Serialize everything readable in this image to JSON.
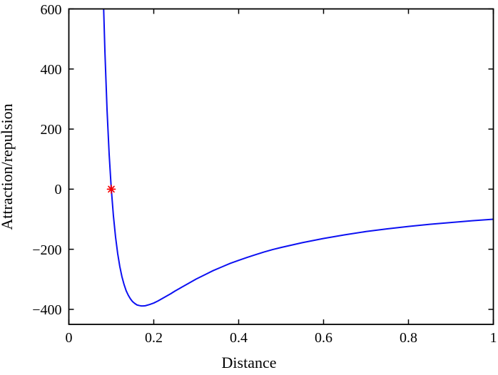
{
  "figure": {
    "background": "#ffffff",
    "axis_color": "#000000",
    "text_color": "#000000"
  },
  "chart_data": {
    "type": "line",
    "title": "",
    "xlabel": "Distance",
    "ylabel": "Attraction/repulsion",
    "xlim": [
      0,
      1
    ],
    "ylim": [
      -450,
      600
    ],
    "grid": false,
    "legend": "none",
    "box": true,
    "xticks": [
      0,
      0.2,
      0.4,
      0.6,
      0.8,
      1
    ],
    "xtick_labels": [
      "0",
      "0.2",
      "0.4",
      "0.6",
      "0.8",
      "1"
    ],
    "yticks": [
      -400,
      -200,
      0,
      200,
      400,
      600
    ],
    "ytick_labels": [
      "−400",
      "−200",
      "0",
      "200",
      "400",
      "600"
    ],
    "line_color": "#0c10f2",
    "line_width": 2,
    "marker": {
      "type": "asterisk",
      "semantic": "zero-crossing-point",
      "x": 0.1,
      "y": 0,
      "color": "#f80000",
      "size": 11
    },
    "series": [
      {
        "name": "attraction-repulsion-curve",
        "x": [
          0.082,
          0.085,
          0.09,
          0.095,
          0.1,
          0.105,
          0.11,
          0.115,
          0.12,
          0.125,
          0.13,
          0.135,
          0.14,
          0.145,
          0.15,
          0.155,
          0.16,
          0.165,
          0.17,
          0.175,
          0.18,
          0.19,
          0.2,
          0.21,
          0.22,
          0.23,
          0.24,
          0.25,
          0.26,
          0.28,
          0.3,
          0.32,
          0.34,
          0.36,
          0.38,
          0.4,
          0.42,
          0.44,
          0.46,
          0.48,
          0.5,
          0.55,
          0.6,
          0.65,
          0.7,
          0.75,
          0.8,
          0.85,
          0.9,
          0.95,
          1.0
        ],
        "y": [
          600,
          456,
          263,
          115,
          0,
          -89,
          -159,
          -214,
          -257,
          -291,
          -317,
          -338,
          -353,
          -365,
          -374,
          -380,
          -385,
          -387,
          -388.5,
          -388.7,
          -388,
          -384,
          -379,
          -372,
          -364,
          -356,
          -348,
          -339,
          -331,
          -315,
          -299,
          -285,
          -271,
          -259,
          -247,
          -237,
          -227,
          -218,
          -209,
          -201,
          -194,
          -178,
          -164,
          -152,
          -141,
          -132,
          -124,
          -117,
          -111,
          -105,
          -100
        ]
      }
    ]
  }
}
